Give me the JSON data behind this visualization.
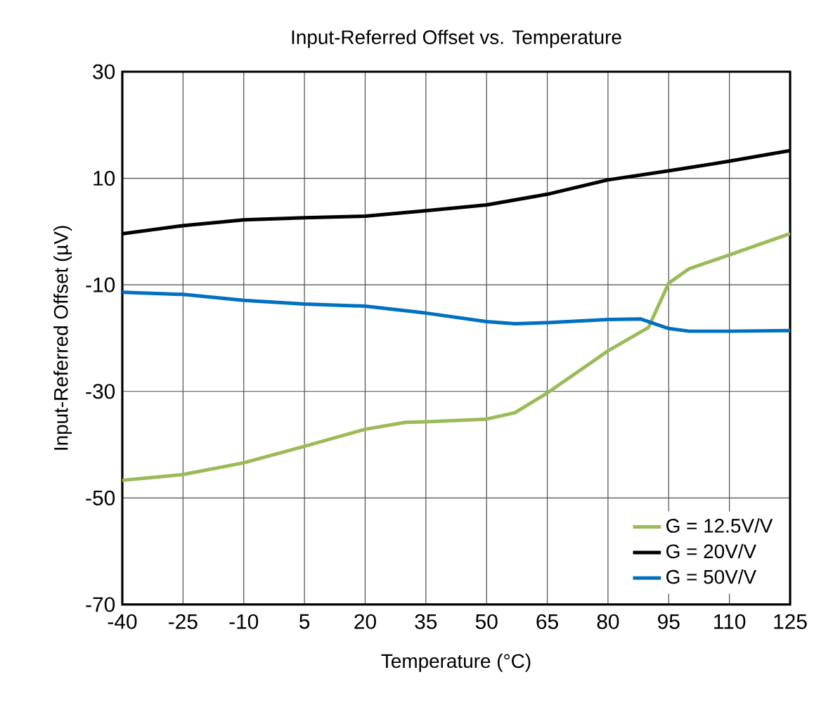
{
  "chart_data": {
    "type": "line",
    "title": "Input-Referred Offset vs. Temperature",
    "xlabel": "Temperature (°C)",
    "ylabel": "Input-Referred Offset (µV)",
    "xlim": [
      -40,
      125
    ],
    "xticks": [
      -40,
      -25,
      -10,
      5,
      20,
      35,
      50,
      65,
      80,
      95,
      110,
      125
    ],
    "ylim": [
      -70,
      30
    ],
    "yticks": [
      -70,
      -50,
      -30,
      -10,
      10,
      30
    ],
    "grid": true,
    "legend": "bottom right",
    "marker": "none",
    "line_style": "solid",
    "series": [
      {
        "name": "G = 12.5V/V",
        "color": "#9bbb59",
        "x": [
          -40,
          -25,
          -10,
          5,
          20,
          30,
          35,
          50,
          57,
          65,
          80,
          90,
          95,
          100,
          110,
          125
        ],
        "values": [
          -46.7,
          -45.6,
          -43.4,
          -40.3,
          -37.1,
          -35.8,
          -35.7,
          -35.2,
          -34,
          -30.3,
          -22.4,
          -18,
          -9.7,
          -7,
          -4.4,
          -0.4
        ]
      },
      {
        "name": "G = 20V/V",
        "color": "#000000",
        "x": [
          -40,
          -25,
          -10,
          5,
          20,
          35,
          50,
          65,
          80,
          95,
          110,
          125
        ],
        "values": [
          -0.4,
          1.1,
          2.2,
          2.6,
          2.9,
          3.9,
          5,
          7,
          9.7,
          11.4,
          13.2,
          15.2
        ]
      },
      {
        "name": "G = 50V/V",
        "color": "#0070c0",
        "x": [
          -40,
          -25,
          -10,
          5,
          20,
          35,
          50,
          57,
          65,
          80,
          88,
          95,
          100,
          110,
          125
        ],
        "values": [
          -11.4,
          -11.8,
          -12.9,
          -13.6,
          -14,
          -15.3,
          -16.9,
          -17.3,
          -17.1,
          -16.5,
          -16.4,
          -18.2,
          -18.7,
          -18.7,
          -18.6
        ]
      }
    ]
  }
}
